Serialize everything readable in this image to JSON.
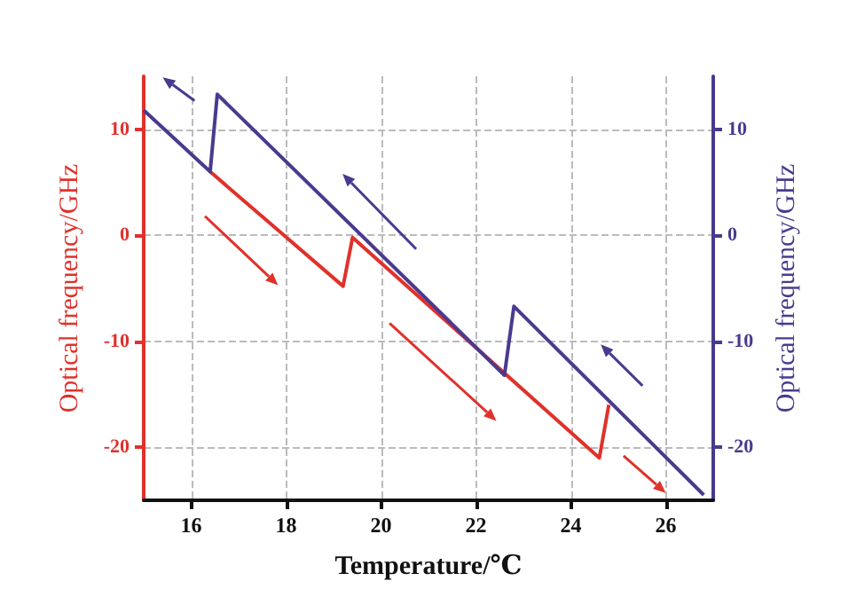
{
  "chart_data": {
    "type": "line",
    "xlabel": "Temperature/℃",
    "ylabel": "Optical frequency/GHz",
    "y2label": "Optical frequency/GHz",
    "xlim": [
      15,
      27
    ],
    "xticks": [
      16,
      18,
      20,
      22,
      24,
      26
    ],
    "ylim": [
      -25,
      15
    ],
    "yticks": [
      -20,
      -10,
      0,
      10
    ],
    "y2lim": [
      -25,
      15
    ],
    "y2ticks": [
      -20,
      -10,
      0,
      10
    ],
    "grid": true,
    "marker": "none",
    "line_style": "solid",
    "series": [
      {
        "color": "#e0312b",
        "x": [
          16.4,
          19.2,
          19.4,
          24.6,
          24.8
        ],
        "values": [
          6,
          -4.8,
          -0.2,
          -21,
          -16
        ]
      },
      {
        "color": "#4a3a8e",
        "axis": "y2",
        "x": [
          15,
          16.4,
          16.55,
          22.6,
          22.8,
          26.8
        ],
        "values": [
          11.8,
          6,
          13.3,
          -13.2,
          -6.7,
          -24.5
        ]
      }
    ]
  }
}
